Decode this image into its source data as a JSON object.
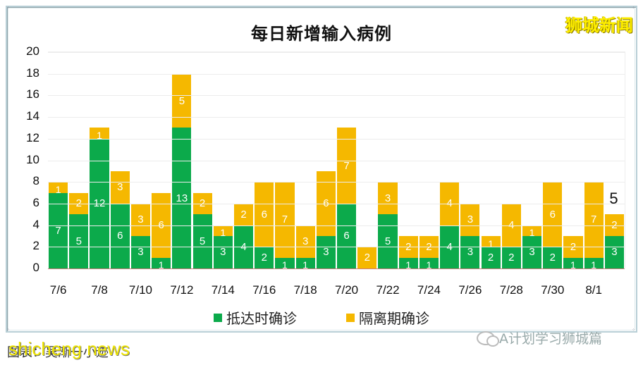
{
  "watermarks": {
    "top_right": "狮城新闻",
    "bottom_left": "shicheng news",
    "wechat": "A计划学习狮城篇"
  },
  "caption": "图表：吴渐一小迹",
  "colors": {
    "arrival": "#0caa4b",
    "quarantine": "#f5b800"
  },
  "chart_data": {
    "type": "bar",
    "stacked": true,
    "title": "每日新增输入病例",
    "xlabel": "",
    "ylabel": "",
    "ylim": [
      0,
      20
    ],
    "yticks": [
      "0",
      "2",
      "4",
      "6",
      "8",
      "10",
      "12",
      "14",
      "16",
      "18",
      "20"
    ],
    "grid": true,
    "legend_position": "bottom",
    "categories": [
      "7/6",
      "7/7",
      "7/8",
      "7/9",
      "7/10",
      "7/11",
      "7/12",
      "7/13",
      "7/14",
      "7/15",
      "7/16",
      "7/17",
      "7/18",
      "7/19",
      "7/20",
      "7/21",
      "7/22",
      "7/23",
      "7/24",
      "7/25",
      "7/26",
      "7/27",
      "7/28",
      "7/29",
      "7/30",
      "7/31",
      "8/1",
      "8/2"
    ],
    "xtick_labels": [
      "7/6",
      "7/8",
      "7/10",
      "7/12",
      "7/14",
      "7/16",
      "7/18",
      "7/20",
      "7/22",
      "7/24",
      "7/26",
      "7/28",
      "7/30",
      "8/1"
    ],
    "series": [
      {
        "name": "抵达时确诊",
        "color": "#0caa4b",
        "values": [
          7,
          5,
          12,
          6,
          3,
          1,
          13,
          5,
          3,
          4,
          2,
          1,
          1,
          3,
          6,
          0,
          5,
          1,
          1,
          4,
          3,
          2,
          2,
          3,
          2,
          1,
          1,
          3
        ]
      },
      {
        "name": "隔离期确诊",
        "color": "#f5b800",
        "values": [
          1,
          2,
          1,
          3,
          3,
          6,
          5,
          2,
          1,
          2,
          6,
          7,
          3,
          6,
          7,
          2,
          3,
          2,
          2,
          4,
          3,
          1,
          4,
          1,
          6,
          2,
          7,
          2
        ]
      }
    ],
    "annotations": [
      {
        "category": "8/2",
        "text": "5"
      }
    ]
  }
}
